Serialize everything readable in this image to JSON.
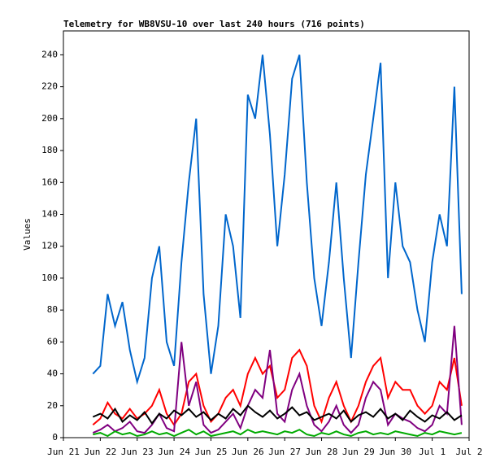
{
  "chart_data": {
    "type": "line",
    "title": "Telemetry for WB8VSU-10 over last 240 hours (716 points)",
    "ylabel": "Values",
    "xlim": [
      0,
      11
    ],
    "xticks": [
      {
        "value": 0,
        "label": "Jun 21"
      },
      {
        "value": 1,
        "label": "Jun 22"
      },
      {
        "value": 2,
        "label": "Jun 23"
      },
      {
        "value": 3,
        "label": "Jun 24"
      },
      {
        "value": 4,
        "label": "Jun 25"
      },
      {
        "value": 5,
        "label": "Jun 26"
      },
      {
        "value": 6,
        "label": "Jun 27"
      },
      {
        "value": 7,
        "label": "Jun 28"
      },
      {
        "value": 8,
        "label": "Jun 29"
      },
      {
        "value": 9,
        "label": "Jun 30"
      },
      {
        "value": 10,
        "label": "Jul 1"
      },
      {
        "value": 11,
        "label": "Jul 2"
      }
    ],
    "ylim": [
      0,
      255
    ],
    "yticks": [
      0,
      20,
      40,
      60,
      80,
      100,
      120,
      140,
      160,
      180,
      200,
      220,
      240
    ],
    "x": [
      0.8,
      1.0,
      1.2,
      1.4,
      1.6,
      1.8,
      2.0,
      2.2,
      2.4,
      2.6,
      2.8,
      3.0,
      3.2,
      3.4,
      3.6,
      3.8,
      4.0,
      4.2,
      4.4,
      4.6,
      4.8,
      5.0,
      5.2,
      5.4,
      5.6,
      5.8,
      6.0,
      6.2,
      6.4,
      6.6,
      6.8,
      7.0,
      7.2,
      7.4,
      7.6,
      7.8,
      8.0,
      8.2,
      8.4,
      8.6,
      8.8,
      9.0,
      9.2,
      9.4,
      9.6,
      9.8,
      10.0,
      10.2,
      10.4,
      10.6,
      10.8
    ],
    "series": [
      {
        "color": "#0066cc",
        "values": [
          40,
          45,
          90,
          70,
          85,
          55,
          35,
          50,
          100,
          120,
          60,
          45,
          110,
          160,
          200,
          90,
          40,
          70,
          140,
          120,
          75,
          215,
          200,
          240,
          190,
          120,
          165,
          225,
          240,
          160,
          100,
          70,
          110,
          160,
          100,
          50,
          110,
          165,
          200,
          235,
          100,
          160,
          120,
          110,
          80,
          60,
          110,
          140,
          120,
          220,
          90
        ]
      },
      {
        "color": "#ff0000",
        "values": [
          8,
          12,
          22,
          15,
          12,
          18,
          12,
          15,
          20,
          30,
          15,
          8,
          15,
          35,
          40,
          20,
          10,
          15,
          25,
          30,
          20,
          40,
          50,
          40,
          45,
          25,
          30,
          50,
          55,
          45,
          20,
          10,
          25,
          35,
          20,
          10,
          20,
          35,
          45,
          50,
          25,
          35,
          30,
          30,
          20,
          15,
          20,
          35,
          30,
          50,
          20
        ]
      },
      {
        "color": "#800080",
        "values": [
          3,
          5,
          8,
          4,
          6,
          10,
          4,
          3,
          8,
          15,
          6,
          4,
          60,
          20,
          35,
          8,
          3,
          5,
          10,
          15,
          6,
          20,
          30,
          25,
          55,
          15,
          10,
          30,
          40,
          20,
          8,
          4,
          10,
          20,
          8,
          3,
          8,
          25,
          35,
          30,
          8,
          15,
          12,
          10,
          6,
          4,
          8,
          20,
          15,
          70,
          8
        ]
      },
      {
        "color": "#000000",
        "values": [
          13,
          15,
          12,
          18,
          10,
          14,
          11,
          16,
          9,
          15,
          12,
          17,
          14,
          18,
          13,
          16,
          11,
          15,
          12,
          18,
          14,
          20,
          16,
          13,
          17,
          12,
          15,
          19,
          14,
          16,
          11,
          13,
          15,
          12,
          17,
          10,
          14,
          16,
          13,
          18,
          12,
          15,
          11,
          17,
          13,
          10,
          14,
          12,
          16,
          11,
          14
        ]
      },
      {
        "color": "#00aa00",
        "values": [
          2,
          3,
          1,
          4,
          2,
          3,
          1,
          2,
          4,
          2,
          3,
          1,
          3,
          5,
          2,
          4,
          1,
          2,
          3,
          4,
          2,
          5,
          3,
          4,
          3,
          2,
          4,
          3,
          5,
          2,
          1,
          3,
          2,
          4,
          2,
          1,
          3,
          4,
          2,
          3,
          2,
          4,
          3,
          2,
          1,
          3,
          2,
          4,
          3,
          2,
          3
        ]
      }
    ]
  }
}
